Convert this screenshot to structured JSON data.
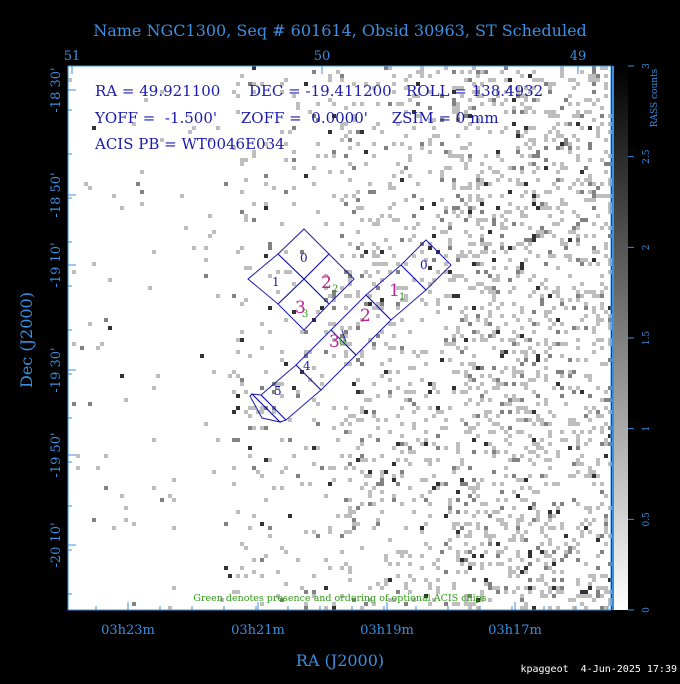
{
  "chart_data": {
    "type": "scatter",
    "title": "Name NGC1300, Seq # 601614, Obsid 30963, ST Scheduled",
    "xlabel": "RA (J2000)",
    "ylabel": "Dec (J2000)",
    "top_axis_ticks": [
      "51",
      "50",
      "49"
    ],
    "x_ticks": [
      "03h23m",
      "03h21m",
      "03h19m",
      "03h17m"
    ],
    "y_ticks": [
      "-18 30'",
      "-18 50'",
      "-19 10'",
      "-19 30'",
      "-19 50'",
      "-20 10'"
    ],
    "colorbar": {
      "label": "RASS counts",
      "ticks": [
        "0",
        "0.5",
        "1",
        "1.5",
        "2",
        "2.5",
        "3"
      ],
      "range": [
        0,
        3
      ]
    },
    "info_lines": [
      "RA = 49.921100      DEC = -19.411200   ROLL = 138.4932",
      "YOFF =  -1.500'     ZOFF =  0.0000'     ZSIM = 0 mm",
      "ACIS PB = WT0046E034"
    ],
    "chips": {
      "acis_i": [
        "0",
        "1",
        "2",
        "3"
      ],
      "acis_s": [
        "0",
        "1",
        "2",
        "3",
        "4",
        "5"
      ],
      "magenta_labels": [
        "2",
        "3",
        "1",
        "2",
        "3"
      ],
      "green_labels": [
        "2",
        "3",
        "1",
        "0"
      ]
    },
    "footnote": "Green denotes presence and ordering of optional ACIS chips",
    "credit": "kpaggeot  4-Jun-2025 17:39"
  },
  "colors": {
    "background": "#000000",
    "axis": "#3b8fe0",
    "chip_outline": "#1a1ab0",
    "chip_label": "#1a1ab0",
    "magenta": "#c0208a",
    "green": "#2f9a14",
    "info_text": "#1a1ab0"
  }
}
